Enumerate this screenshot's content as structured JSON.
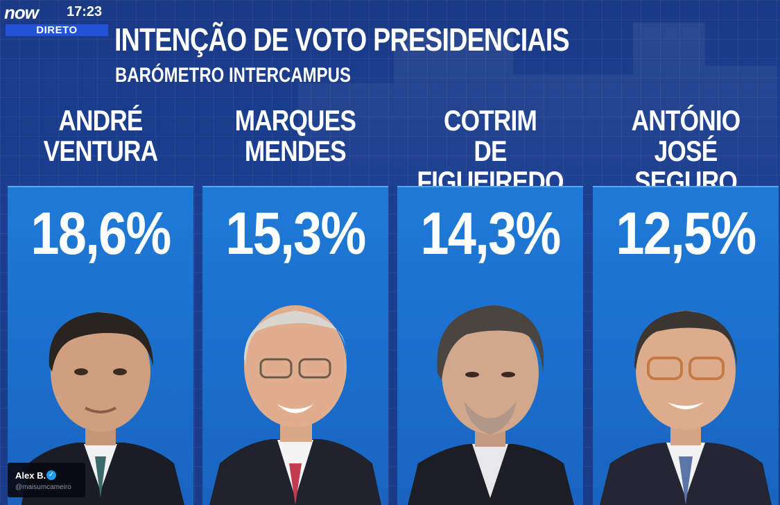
{
  "broadcast": {
    "channel": "now",
    "time": "17:23",
    "live_label": "DIRETO"
  },
  "headline": {
    "title": "INTENÇÃO DE VOTO PRESIDENCIAIS",
    "subtitle": "BARÓMETRO INTERCAMPUS"
  },
  "candidates": [
    {
      "name": "ANDRÉ\nVENTURA",
      "percent": "18,6%"
    },
    {
      "name": "MARQUES\nMENDES",
      "percent": "15,3%"
    },
    {
      "name": "COTRIM\nDE FIGUEIREDO",
      "percent": "14,3%"
    },
    {
      "name": "ANTÓNIO\nJOSÉ SEGURO",
      "percent": "12,5%"
    }
  ],
  "credit": {
    "name": "Alex B.",
    "verified_icon": "verified-badge-icon",
    "handle": "@maisumcameiro"
  },
  "colors": {
    "background": "#1b3f92",
    "panel": "#1f7ad6",
    "live_badge": "#2152d8",
    "text": "#ffffff"
  }
}
